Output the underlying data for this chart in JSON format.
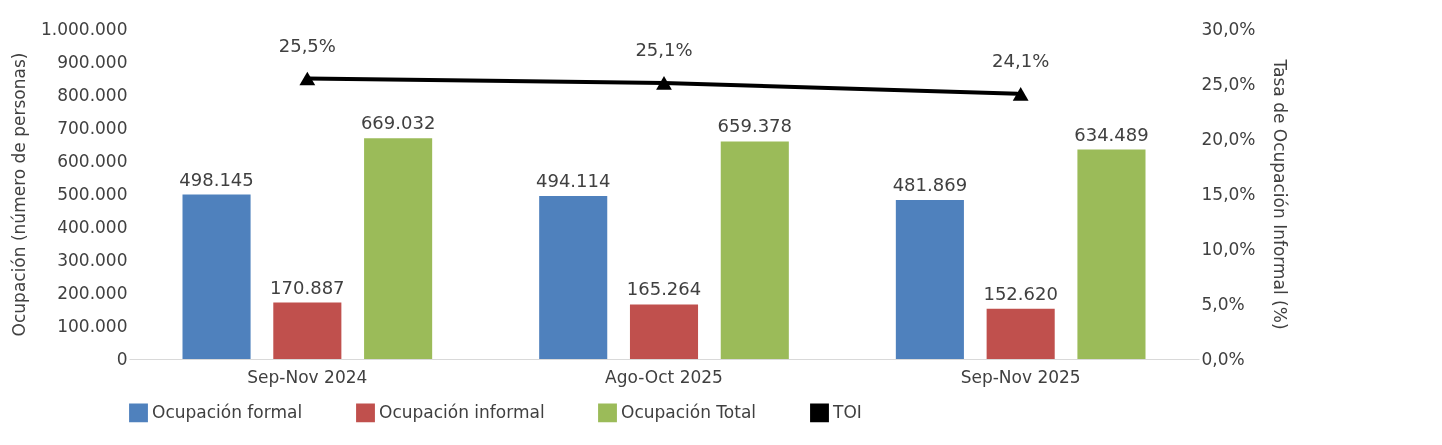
{
  "chart_data": {
    "type": "bar",
    "ylabel": "Ocupación (número de personas)",
    "y2label": "Tasa de Ocupación Informal (%)",
    "categories": [
      "Sep-Nov 2024",
      "Ago-Oct 2025",
      "Sep-Nov 2025"
    ],
    "series": [
      {
        "name": "Ocupación formal",
        "type": "bar",
        "color": "#4f81bd",
        "values": [
          498145,
          494114,
          481869
        ],
        "value_labels": [
          "498.145",
          "494.114",
          "481.869"
        ]
      },
      {
        "name": "Ocupación informal",
        "type": "bar",
        "color": "#c0504d",
        "values": [
          170887,
          165264,
          152620
        ],
        "value_labels": [
          "170.887",
          "165.264",
          "152.620"
        ]
      },
      {
        "name": "Ocupación Total",
        "type": "bar",
        "color": "#9bbb59",
        "values": [
          669032,
          659378,
          634489
        ],
        "value_labels": [
          "669.032",
          "659.378",
          "634.489"
        ]
      },
      {
        "name": "TOI",
        "type": "line",
        "axis": "y2",
        "color": "#000000",
        "marker": "triangle",
        "values": [
          25.5,
          25.1,
          24.1
        ],
        "value_labels": [
          "25,5%",
          "25,1%",
          "24,1%"
        ]
      }
    ],
    "ylim": [
      0,
      1000000
    ],
    "yticks": [
      0,
      {
        "value": 100000,
        "label": "100.000"
      },
      {
        "value": 200000,
        "label": "200.000"
      },
      {
        "value": 300000,
        "label": "300.000"
      },
      {
        "value": 400000,
        "label": "400.000"
      },
      {
        "value": 500000,
        "label": "500.000"
      },
      {
        "value": 600000,
        "label": "600.000"
      },
      {
        "value": 700000,
        "label": "700.000"
      },
      {
        "value": 800000,
        "label": "800.000"
      },
      {
        "value": 900000,
        "label": "900.000"
      },
      {
        "value": 1000000,
        "label": "1.000.000"
      }
    ],
    "y2lim": [
      0,
      30
    ],
    "y2ticks": [
      {
        "value": 0,
        "label": "0,0%"
      },
      {
        "value": 5,
        "label": "5,0%"
      },
      {
        "value": 10,
        "label": "10,0%"
      },
      {
        "value": 15,
        "label": "15,0%"
      },
      {
        "value": 20,
        "label": "20,0%"
      },
      {
        "value": 25,
        "label": "25,0%"
      },
      {
        "value": 30,
        "label": "30,0%"
      }
    ],
    "legend": "bottom"
  }
}
